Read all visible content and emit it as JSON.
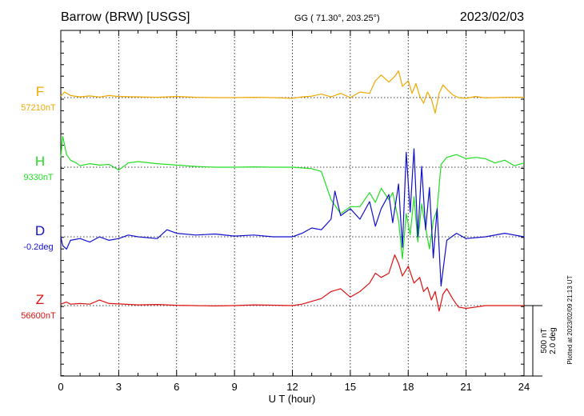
{
  "header": {
    "station": "Barrow (BRW)  [USGS]",
    "coords": "GG ( 71.30°, 203.25°)",
    "date": "2023/02/03"
  },
  "footer": {
    "plotted": "Plotted at 2023/02/09 21:13 UT"
  },
  "scale": {
    "value_nt": "500 nT",
    "value_deg": "2.0 deg"
  },
  "chart_data": {
    "type": "line",
    "xlabel": "U T (hour)",
    "xlim": [
      0,
      24
    ],
    "xticks": [
      "0",
      "3",
      "6",
      "9",
      "12",
      "15",
      "18",
      "21",
      "24"
    ],
    "grid": true,
    "scale_bar_nT": 500,
    "series": [
      {
        "name": "F",
        "baseline_label": "57210nT",
        "color": "#f0a800",
        "x": [
          0,
          0.2,
          0.5,
          1,
          1.5,
          2,
          2.5,
          3,
          4,
          5,
          6,
          7,
          8,
          9,
          10,
          11,
          12,
          12.5,
          13,
          13.5,
          14,
          14.5,
          15,
          15.5,
          16,
          16.3,
          16.6,
          17,
          17.3,
          17.5,
          17.7,
          18,
          18.2,
          18.4,
          18.6,
          18.8,
          19,
          19.2,
          19.4,
          19.6,
          19.8,
          20,
          20.3,
          20.6,
          21,
          21.5,
          22,
          23,
          24
        ],
        "y": [
          57220,
          57250,
          57225,
          57215,
          57222,
          57214,
          57225,
          57218,
          57215,
          57212,
          57218,
          57212,
          57210,
          57210,
          57212,
          57210,
          57205,
          57215,
          57220,
          57235,
          57215,
          57240,
          57210,
          57250,
          57240,
          57330,
          57370,
          57320,
          57360,
          57400,
          57290,
          57330,
          57240,
          57310,
          57220,
          57170,
          57250,
          57200,
          57100,
          57240,
          57300,
          57270,
          57230,
          57210,
          57205,
          57218,
          57208,
          57212,
          57212
        ]
      },
      {
        "name": "H",
        "baseline_label": "9330nT",
        "color": "#22dd22",
        "x": [
          0,
          0.1,
          0.3,
          0.5,
          0.8,
          1,
          1.5,
          2,
          2.5,
          3,
          3.5,
          4,
          5,
          6,
          7,
          8,
          9,
          10,
          11,
          12,
          13,
          13.5,
          14,
          14.5,
          15,
          15.5,
          16,
          16.3,
          16.6,
          17,
          17.2,
          17.5,
          17.7,
          17.9,
          18.1,
          18.3,
          18.5,
          18.7,
          18.9,
          19.1,
          19.3,
          19.5,
          19.7,
          20,
          20.5,
          21,
          21.5,
          22,
          22.5,
          23,
          23.5,
          24
        ],
        "y": [
          9400,
          9550,
          9420,
          9380,
          9360,
          9340,
          9355,
          9345,
          9350,
          9310,
          9360,
          9370,
          9355,
          9345,
          9335,
          9330,
          9330,
          9332,
          9330,
          9330,
          9320,
          9300,
          9100,
          9000,
          9050,
          9050,
          9150,
          9080,
          9180,
          9100,
          9150,
          8950,
          8680,
          9000,
          8850,
          9120,
          8800,
          9070,
          8900,
          8750,
          8950,
          9030,
          9350,
          9400,
          9420,
          9390,
          9400,
          9390,
          9360,
          9380,
          9340,
          9360
        ]
      },
      {
        "name": "D",
        "baseline_label": "-0.2deg",
        "color": "#1010cc",
        "x": [
          0,
          0.1,
          0.3,
          0.5,
          1,
          1.5,
          2,
          2.5,
          3,
          3.5,
          4,
          5,
          5.5,
          6,
          7,
          8,
          9,
          10,
          11,
          12,
          12.5,
          13,
          13.5,
          14,
          14.2,
          14.5,
          15,
          15.5,
          16,
          16.3,
          16.6,
          17,
          17.2,
          17.5,
          17.7,
          17.9,
          18.1,
          18.3,
          18.5,
          18.7,
          18.9,
          19.1,
          19.3,
          19.5,
          19.7,
          20,
          20.5,
          21,
          22,
          23,
          24
        ],
        "y": [
          -0.2,
          -0.45,
          -0.55,
          -0.3,
          -0.25,
          -0.35,
          -0.2,
          -0.3,
          -0.25,
          -0.15,
          -0.2,
          -0.25,
          0.0,
          -0.1,
          -0.15,
          -0.12,
          -0.18,
          -0.15,
          -0.2,
          -0.2,
          -0.1,
          0.05,
          0.0,
          0.3,
          1.1,
          0.4,
          0.6,
          0.3,
          0.8,
          0.1,
          0.6,
          1.0,
          0.2,
          1.3,
          -0.5,
          2.2,
          0.5,
          2.3,
          -0.2,
          1.8,
          0.0,
          1.2,
          -0.8,
          0.6,
          -1.6,
          -0.3,
          -0.1,
          -0.25,
          -0.2,
          -0.1,
          -0.2
        ]
      },
      {
        "name": "Z",
        "baseline_label": "56600nT",
        "color": "#dd1111",
        "x": [
          0,
          0.3,
          0.5,
          1,
          1.5,
          2,
          2.5,
          3,
          4,
          5,
          6,
          7,
          8,
          9,
          10,
          11,
          12,
          12.5,
          13,
          13.5,
          14,
          14.5,
          15,
          15.5,
          16,
          16.3,
          16.6,
          17,
          17.3,
          17.5,
          17.7,
          18,
          18.3,
          18.6,
          18.8,
          19,
          19.2,
          19.4,
          19.6,
          19.8,
          20,
          20.3,
          20.6,
          21,
          21.5,
          22,
          23,
          24
        ],
        "y": [
          56610,
          56625,
          56610,
          56615,
          56610,
          56640,
          56615,
          56612,
          56605,
          56608,
          56602,
          56600,
          56598,
          56600,
          56605,
          56603,
          56600,
          56610,
          56630,
          56650,
          56700,
          56720,
          56660,
          56700,
          56760,
          56830,
          56800,
          56830,
          56960,
          56900,
          56810,
          56880,
          56760,
          56800,
          56700,
          56730,
          56640,
          56700,
          56560,
          56680,
          56720,
          56650,
          56590,
          56580,
          56590,
          56600,
          56600,
          56600
        ]
      }
    ]
  }
}
